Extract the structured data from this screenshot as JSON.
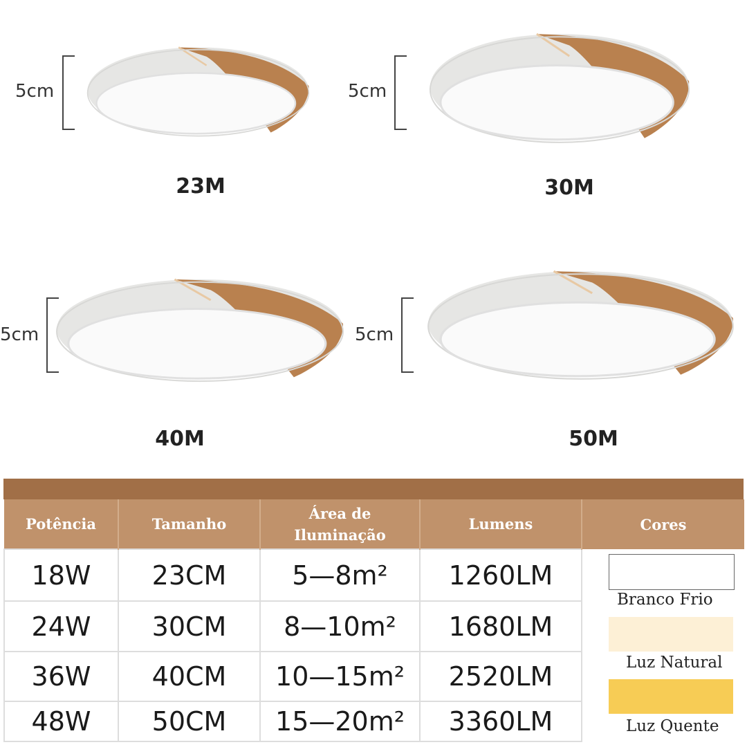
{
  "lamps": [
    {
      "height_label": "5cm",
      "caption": "23M"
    },
    {
      "height_label": "5cm",
      "caption": "30M"
    },
    {
      "height_label": "5cm",
      "caption": "40M"
    },
    {
      "height_label": "5cm",
      "caption": "50M"
    }
  ],
  "colors": {
    "wood": "#b9814f",
    "header": "#c0926b",
    "topbar": "#a16f47",
    "cold_white": "#ffffff",
    "natural": "#fdf0d6",
    "warm": "#f7cc55"
  },
  "table": {
    "headers": [
      "Potência",
      "Tamanho",
      "Área de Iluminação",
      "Lumens",
      "Cores"
    ],
    "rows": [
      [
        "18W",
        "23CM",
        "5—8m²",
        "1260LM"
      ],
      [
        "24W",
        "30CM",
        "8—10m²",
        "1680LM"
      ],
      [
        "36W",
        "40CM",
        "10—15m²",
        "2520LM"
      ],
      [
        "48W",
        "50CM",
        "15—20m²",
        "3360LM"
      ]
    ],
    "color_options": [
      "Branco Frio",
      "Luz Natural",
      "Luz Quente"
    ]
  }
}
